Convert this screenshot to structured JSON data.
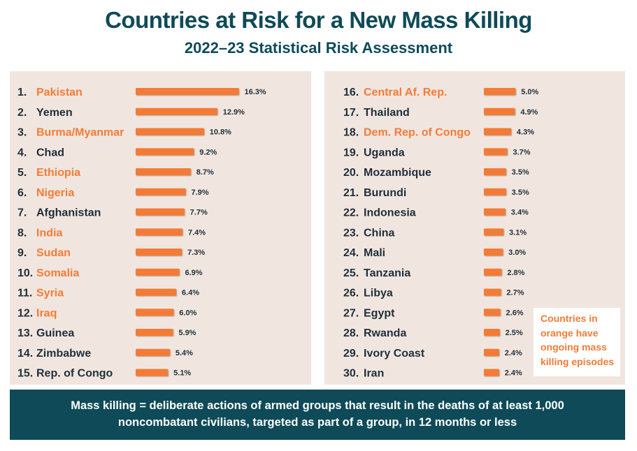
{
  "header": {
    "title": "Countries at Risk for a New Mass Killing",
    "subtitle": "2022–23 Statistical Risk Assessment"
  },
  "colors": {
    "ongoing": "#f47b36",
    "normal": "#1f2f3a",
    "bar": "#f47b36",
    "panel": "#f1e6df",
    "banner": "#0e4a58"
  },
  "chart_data": {
    "type": "bar",
    "orientation": "horizontal",
    "value_unit": "%",
    "columns": [
      {
        "items": [
          {
            "rank": "1.",
            "country": "Pakistan",
            "value": 16.3,
            "label": "16.3%",
            "ongoing": true
          },
          {
            "rank": "2.",
            "country": "Yemen",
            "value": 12.9,
            "label": "12.9%",
            "ongoing": false
          },
          {
            "rank": "3.",
            "country": "Burma/Myanmar",
            "value": 10.8,
            "label": "10.8%",
            "ongoing": true
          },
          {
            "rank": "4.",
            "country": "Chad",
            "value": 9.2,
            "label": "9.2%",
            "ongoing": false
          },
          {
            "rank": "5.",
            "country": "Ethiopia",
            "value": 8.7,
            "label": "8.7%",
            "ongoing": true
          },
          {
            "rank": "6.",
            "country": "Nigeria",
            "value": 7.9,
            "label": "7.9%",
            "ongoing": true
          },
          {
            "rank": "7.",
            "country": "Afghanistan",
            "value": 7.7,
            "label": "7.7%",
            "ongoing": false
          },
          {
            "rank": "8.",
            "country": "India",
            "value": 7.4,
            "label": "7.4%",
            "ongoing": true
          },
          {
            "rank": "9.",
            "country": "Sudan",
            "value": 7.3,
            "label": "7.3%",
            "ongoing": true
          },
          {
            "rank": "10.",
            "country": "Somalia",
            "value": 6.9,
            "label": "6.9%",
            "ongoing": true
          },
          {
            "rank": "11.",
            "country": "Syria",
            "value": 6.4,
            "label": "6.4%",
            "ongoing": true
          },
          {
            "rank": "12.",
            "country": "Iraq",
            "value": 6.0,
            "label": "6.0%",
            "ongoing": true
          },
          {
            "rank": "13.",
            "country": "Guinea",
            "value": 5.9,
            "label": "5.9%",
            "ongoing": false
          },
          {
            "rank": "14.",
            "country": "Zimbabwe",
            "value": 5.4,
            "label": "5.4%",
            "ongoing": false
          },
          {
            "rank": "15.",
            "country": "Rep. of Congo",
            "value": 5.1,
            "label": "5.1%",
            "ongoing": false
          }
        ]
      },
      {
        "items": [
          {
            "rank": "16.",
            "country": "Central Af. Rep.",
            "value": 5.0,
            "label": "5.0%",
            "ongoing": true
          },
          {
            "rank": "17.",
            "country": "Thailand",
            "value": 4.9,
            "label": "4.9%",
            "ongoing": false
          },
          {
            "rank": "18.",
            "country": "Dem. Rep. of Congo",
            "value": 4.3,
            "label": "4.3%",
            "ongoing": true
          },
          {
            "rank": "19.",
            "country": "Uganda",
            "value": 3.7,
            "label": "3.7%",
            "ongoing": false
          },
          {
            "rank": "20.",
            "country": "Mozambique",
            "value": 3.5,
            "label": "3.5%",
            "ongoing": false
          },
          {
            "rank": "21.",
            "country": "Burundi",
            "value": 3.5,
            "label": "3.5%",
            "ongoing": false
          },
          {
            "rank": "22.",
            "country": "Indonesia",
            "value": 3.4,
            "label": "3.4%",
            "ongoing": false
          },
          {
            "rank": "23.",
            "country": "China",
            "value": 3.1,
            "label": "3.1%",
            "ongoing": false
          },
          {
            "rank": "24.",
            "country": "Mali",
            "value": 3.0,
            "label": "3.0%",
            "ongoing": false
          },
          {
            "rank": "25.",
            "country": "Tanzania",
            "value": 2.8,
            "label": "2.8%",
            "ongoing": false
          },
          {
            "rank": "26.",
            "country": "Libya",
            "value": 2.7,
            "label": "2.7%",
            "ongoing": false
          },
          {
            "rank": "27.",
            "country": "Egypt",
            "value": 2.6,
            "label": "2.6%",
            "ongoing": false
          },
          {
            "rank": "28.",
            "country": "Rwanda",
            "value": 2.5,
            "label": "2.5%",
            "ongoing": false
          },
          {
            "rank": "29.",
            "country": "Ivory Coast",
            "value": 2.4,
            "label": "2.4%",
            "ongoing": false
          },
          {
            "rank": "30.",
            "country": "Iran",
            "value": 2.4,
            "label": "2.4%",
            "ongoing": false
          }
        ]
      }
    ]
  },
  "legend": {
    "lines": [
      "Countries in",
      "orange have",
      "ongoing mass",
      "killing episodes"
    ]
  },
  "footer": {
    "line1": "Mass killing = deliberate actions of armed groups that result in the deaths of at least 1,000",
    "line2": "noncombatant civilians, targeted as part of a group, in 12 months or less"
  }
}
